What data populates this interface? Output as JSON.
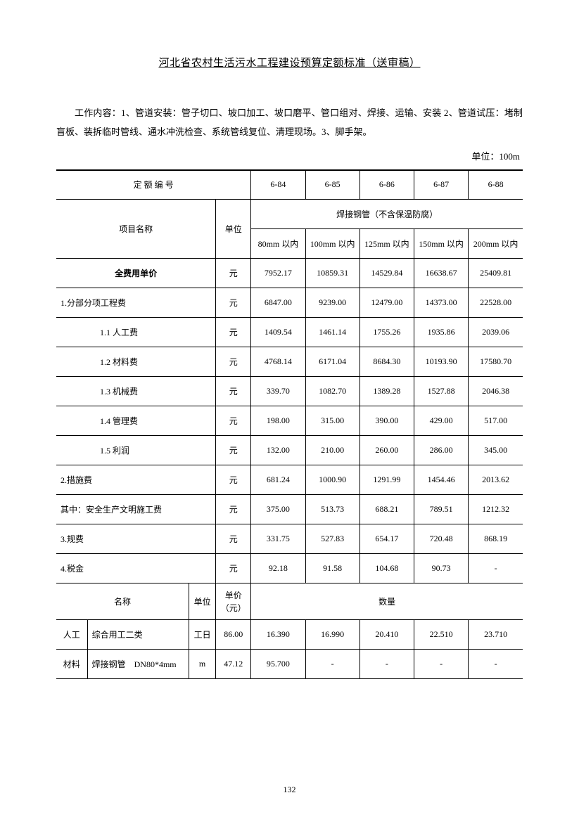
{
  "title": "河北省农村生活污水工程建设预算定额标准（送审稿）",
  "description": "工作内容：1、管道安装：管子切口、坡口加工、坡口磨平、管口组对、焊接、运输、安装 2、管道试压：堵制盲板、装拆临时管线、通水冲洗检查、系统管线复位、清理现场。3、脚手架。",
  "unit_label": "单位：100m",
  "page_number": "132",
  "table": {
    "header_quota_label": "定 额 编 号",
    "quota_codes": [
      "6-84",
      "6-85",
      "6-86",
      "6-87",
      "6-88"
    ],
    "project_name_label": "项目名称",
    "unit_label": "单位",
    "spec_header": "焊接钢管（不含保温防腐）",
    "spec_cols": [
      "80mm 以内",
      "100mm 以内",
      "125mm 以内",
      "150mm 以内",
      "200mm 以内"
    ],
    "rows": [
      {
        "name": "全费用单价",
        "unit": "元",
        "vals": [
          "7952.17",
          "10859.31",
          "14529.84",
          "16638.67",
          "25409.81"
        ],
        "bold": true,
        "indent": 0,
        "align": "center"
      },
      {
        "name": "1.分部分项工程费",
        "unit": "元",
        "vals": [
          "6847.00",
          "9239.00",
          "12479.00",
          "14373.00",
          "22528.00"
        ],
        "indent": 0,
        "align": "left"
      },
      {
        "name": "1.1 人工费",
        "unit": "元",
        "vals": [
          "1409.54",
          "1461.14",
          "1755.26",
          "1935.86",
          "2039.06"
        ],
        "indent": 2
      },
      {
        "name": "1.2 材料费",
        "unit": "元",
        "vals": [
          "4768.14",
          "6171.04",
          "8684.30",
          "10193.90",
          "17580.70"
        ],
        "indent": 2
      },
      {
        "name": "1.3 机械费",
        "unit": "元",
        "vals": [
          "339.70",
          "1082.70",
          "1389.28",
          "1527.88",
          "2046.38"
        ],
        "indent": 2
      },
      {
        "name": "1.4 管理费",
        "unit": "元",
        "vals": [
          "198.00",
          "315.00",
          "390.00",
          "429.00",
          "517.00"
        ],
        "indent": 2
      },
      {
        "name": "1.5 利润",
        "unit": "元",
        "vals": [
          "132.00",
          "210.00",
          "260.00",
          "286.00",
          "345.00"
        ],
        "indent": 2
      },
      {
        "name": "2.措施费",
        "unit": "元",
        "vals": [
          "681.24",
          "1000.90",
          "1291.99",
          "1454.46",
          "2013.62"
        ],
        "indent": 0,
        "align": "left"
      },
      {
        "name": "其中：安全生产文明施工费",
        "unit": "元",
        "vals": [
          "375.00",
          "513.73",
          "688.21",
          "789.51",
          "1212.32"
        ],
        "indent": 0,
        "align": "left"
      },
      {
        "name": "3.规费",
        "unit": "元",
        "vals": [
          "331.75",
          "527.83",
          "654.17",
          "720.48",
          "868.19"
        ],
        "indent": 0,
        "align": "left"
      },
      {
        "name": "4.税金",
        "unit": "元",
        "vals": [
          "92.18",
          "91.58",
          "104.68",
          "90.73",
          "-"
        ],
        "indent": 0,
        "align": "left"
      }
    ],
    "section2": {
      "name_label": "名称",
      "unit_label": "单位",
      "price_label": "单价（元）",
      "qty_label": "数量",
      "rows": [
        {
          "cat": "人工",
          "name": "综合用工二类",
          "unit": "工日",
          "price": "86.00",
          "vals": [
            "16.390",
            "16.990",
            "20.410",
            "22.510",
            "23.710"
          ]
        },
        {
          "cat": "材料",
          "name": "焊接钢管　DN80*4mm",
          "unit": "m",
          "price": "47.12",
          "vals": [
            "95.700",
            "-",
            "-",
            "-",
            "-"
          ]
        }
      ]
    }
  }
}
